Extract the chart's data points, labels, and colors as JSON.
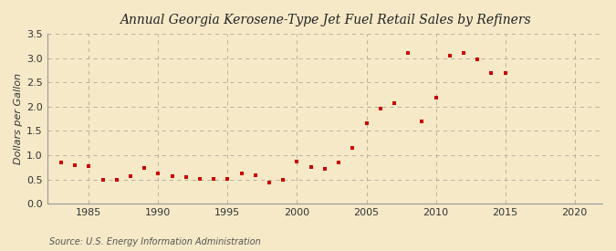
{
  "title": "Annual Georgia Kerosene-Type Jet Fuel Retail Sales by Refiners",
  "ylabel": "Dollars per Gallon",
  "source": "Source: U.S. Energy Information Administration",
  "bg_color": "#f5e9c8",
  "plot_bg_color": "#f5e9c8",
  "marker_color": "#cc0000",
  "xlim": [
    1982,
    2022
  ],
  "ylim": [
    0.0,
    3.5
  ],
  "xticks": [
    1985,
    1990,
    1995,
    2000,
    2005,
    2010,
    2015,
    2020
  ],
  "yticks": [
    0.0,
    0.5,
    1.0,
    1.5,
    2.0,
    2.5,
    3.0,
    3.5
  ],
  "years": [
    1983,
    1984,
    1985,
    1986,
    1987,
    1988,
    1989,
    1990,
    1991,
    1992,
    1993,
    1994,
    1995,
    1996,
    1997,
    1998,
    1999,
    2000,
    2001,
    2002,
    2003,
    2004,
    2005,
    2006,
    2007,
    2008,
    2009,
    2010,
    2011,
    2012,
    2013,
    2014,
    2015
  ],
  "values": [
    0.84,
    0.8,
    0.77,
    0.5,
    0.5,
    0.57,
    0.73,
    0.63,
    0.57,
    0.55,
    0.52,
    0.52,
    0.52,
    0.62,
    0.58,
    0.43,
    0.5,
    0.87,
    0.76,
    0.72,
    0.84,
    1.15,
    1.65,
    1.96,
    2.07,
    3.1,
    1.7,
    2.18,
    3.05,
    3.1,
    2.98,
    2.7,
    2.7
  ]
}
